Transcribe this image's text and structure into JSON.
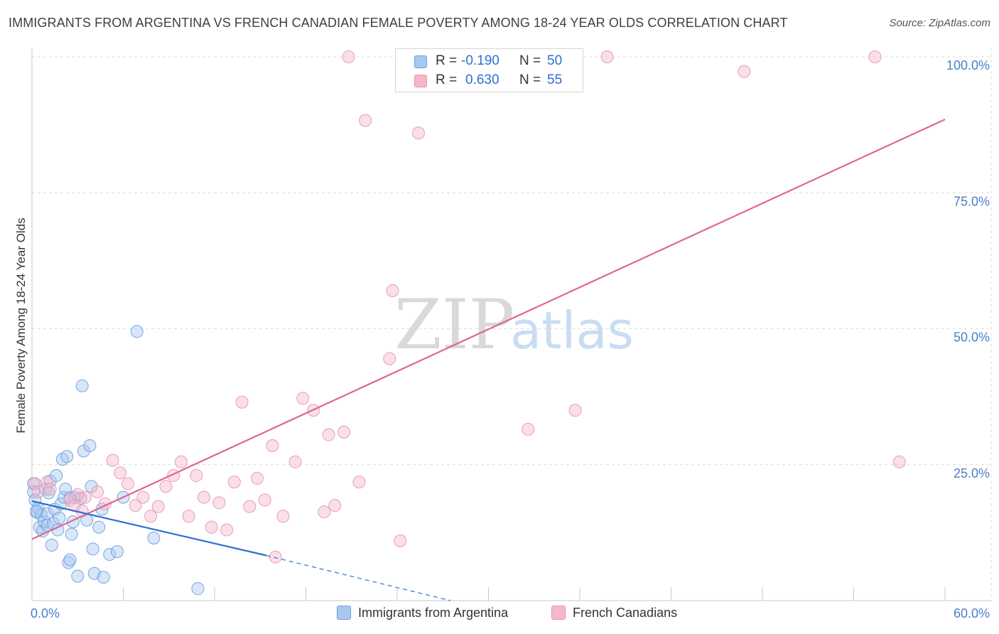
{
  "title": "IMMIGRANTS FROM ARGENTINA VS FRENCH CANADIAN FEMALE POVERTY AMONG 18-24 YEAR OLDS CORRELATION CHART",
  "source": "Source: ZipAtlas.com",
  "watermark": {
    "zip": "ZIP",
    "atlas": "atlas"
  },
  "colors": {
    "blue_fill": "#a9c8f0",
    "blue_stroke": "#6b9de0",
    "blue_line": "#2f6fd1",
    "pink_fill": "#f5b8cb",
    "pink_stroke": "#e893ad",
    "pink_line": "#e0668f",
    "tick_text": "#4a7fc9",
    "grid": "#dcdcdc"
  },
  "legend": {
    "rows": [
      {
        "r_label": "R =",
        "r_value": "-0.190",
        "n_label": "N =",
        "n_value": "50",
        "series": "blue"
      },
      {
        "r_label": "R =",
        "r_value": "0.630",
        "n_label": "N =",
        "n_value": "55",
        "series": "pink"
      }
    ]
  },
  "chart_data": {
    "type": "scatter",
    "title": "IMMIGRANTS FROM ARGENTINA VS FRENCH CANADIAN FEMALE POVERTY AMONG 18-24 YEAR OLDS CORRELATION CHART",
    "xlabel": "",
    "ylabel": "Female Poverty Among 18-24 Year Olds",
    "xlim": [
      0,
      60
    ],
    "ylim": [
      0,
      102
    ],
    "x_tick_labels": [
      {
        "value": 0,
        "label": "0.0%"
      },
      {
        "value": 60,
        "label": "60.0%"
      }
    ],
    "y_tick_labels": [
      {
        "value": 25,
        "label": "25.0%"
      },
      {
        "value": 50,
        "label": "50.0%"
      },
      {
        "value": 75,
        "label": "75.0%"
      },
      {
        "value": 100,
        "label": "100.0%"
      }
    ],
    "x_minor_ticks": [
      0,
      6,
      12,
      18,
      24,
      30,
      36,
      42,
      48,
      54,
      60
    ],
    "grid": true,
    "series": [
      {
        "name": "Immigrants from Argentina",
        "color": "blue",
        "R": -0.19,
        "N": 50,
        "points": [
          [
            0.1,
            21.5
          ],
          [
            0.1,
            20.0
          ],
          [
            0.2,
            18.5
          ],
          [
            0.3,
            16.2
          ],
          [
            0.4,
            17.0
          ],
          [
            0.5,
            13.5
          ],
          [
            0.6,
            15.8
          ],
          [
            0.7,
            12.8
          ],
          [
            0.8,
            14.5
          ],
          [
            0.9,
            20.5
          ],
          [
            1.0,
            16.0
          ],
          [
            1.0,
            13.8
          ],
          [
            1.1,
            19.8
          ],
          [
            1.2,
            22.0
          ],
          [
            1.3,
            10.2
          ],
          [
            1.4,
            14.2
          ],
          [
            1.5,
            16.8
          ],
          [
            1.6,
            23.0
          ],
          [
            1.7,
            13.0
          ],
          [
            1.8,
            15.2
          ],
          [
            1.9,
            17.8
          ],
          [
            2.0,
            26.0
          ],
          [
            2.1,
            19.0
          ],
          [
            2.2,
            20.5
          ],
          [
            2.3,
            26.5
          ],
          [
            2.4,
            7.0
          ],
          [
            2.5,
            7.5
          ],
          [
            2.6,
            12.2
          ],
          [
            2.7,
            14.5
          ],
          [
            2.8,
            19.0
          ],
          [
            3.0,
            4.5
          ],
          [
            3.2,
            18.8
          ],
          [
            3.3,
            39.5
          ],
          [
            3.4,
            27.5
          ],
          [
            3.6,
            14.8
          ],
          [
            3.8,
            28.5
          ],
          [
            3.9,
            21.0
          ],
          [
            4.0,
            9.5
          ],
          [
            4.1,
            5.0
          ],
          [
            4.4,
            13.5
          ],
          [
            4.6,
            16.8
          ],
          [
            4.7,
            4.3
          ],
          [
            5.1,
            8.5
          ],
          [
            5.6,
            9.0
          ],
          [
            6.0,
            19.0
          ],
          [
            6.9,
            49.5
          ],
          [
            8.0,
            11.5
          ],
          [
            10.9,
            2.2
          ],
          [
            0.3,
            16.5
          ],
          [
            2.5,
            18.9
          ]
        ],
        "trend_solid": [
          [
            0,
            18.3
          ],
          [
            15.4,
            8.3
          ]
        ],
        "trend_dashed": [
          [
            15.4,
            8.3
          ],
          [
            27.5,
            0
          ]
        ]
      },
      {
        "name": "French Canadians",
        "color": "pink",
        "R": 0.63,
        "N": 55,
        "points": [
          [
            0.2,
            21.5
          ],
          [
            0.4,
            20.0
          ],
          [
            1.0,
            21.8
          ],
          [
            1.2,
            20.5
          ],
          [
            2.5,
            18.5
          ],
          [
            2.8,
            17.5
          ],
          [
            3.3,
            16.5
          ],
          [
            3.5,
            19.0
          ],
          [
            4.3,
            20.0
          ],
          [
            4.8,
            17.8
          ],
          [
            5.3,
            25.8
          ],
          [
            5.8,
            23.5
          ],
          [
            6.3,
            21.5
          ],
          [
            6.8,
            17.5
          ],
          [
            7.3,
            19.0
          ],
          [
            7.8,
            15.5
          ],
          [
            8.3,
            17.3
          ],
          [
            8.8,
            21.0
          ],
          [
            9.3,
            23.0
          ],
          [
            9.8,
            25.5
          ],
          [
            10.3,
            15.5
          ],
          [
            10.8,
            23.0
          ],
          [
            11.3,
            19.0
          ],
          [
            11.8,
            13.5
          ],
          [
            12.3,
            18.0
          ],
          [
            12.8,
            13.0
          ],
          [
            13.3,
            21.8
          ],
          [
            13.8,
            36.5
          ],
          [
            14.3,
            17.3
          ],
          [
            14.8,
            22.5
          ],
          [
            15.3,
            18.5
          ],
          [
            16.0,
            8.0
          ],
          [
            15.8,
            28.5
          ],
          [
            16.5,
            15.5
          ],
          [
            17.3,
            25.5
          ],
          [
            17.8,
            37.2
          ],
          [
            18.5,
            35.0
          ],
          [
            19.2,
            16.3
          ],
          [
            19.5,
            30.5
          ],
          [
            19.9,
            17.5
          ],
          [
            20.5,
            31.0
          ],
          [
            20.8,
            100.0
          ],
          [
            21.5,
            21.8
          ],
          [
            21.9,
            88.3
          ],
          [
            23.5,
            44.5
          ],
          [
            23.7,
            57.0
          ],
          [
            24.2,
            11.0
          ],
          [
            25.4,
            86.0
          ],
          [
            32.6,
            31.5
          ],
          [
            35.7,
            35.0
          ],
          [
            37.8,
            100.0
          ],
          [
            46.8,
            97.3
          ],
          [
            55.4,
            100.0
          ],
          [
            57.0,
            25.5
          ],
          [
            3.0,
            19.5
          ]
        ],
        "trend": [
          [
            0,
            11.3
          ],
          [
            60,
            88.5
          ]
        ]
      }
    ]
  },
  "bottom_legend": [
    {
      "label": "Immigrants from Argentina",
      "series": "blue"
    },
    {
      "label": "French Canadians",
      "series": "pink"
    }
  ]
}
